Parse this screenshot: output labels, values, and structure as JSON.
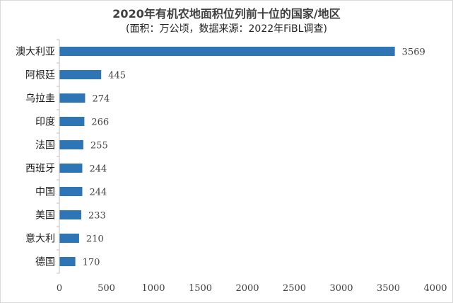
{
  "chart_data": {
    "type": "bar",
    "orientation": "horizontal",
    "title": "2020年有机农地面积位列前十位的国家/地区",
    "subtitle": "(面积：万公顷，数据来源：2022年FiBL调查)",
    "categories": [
      "澳大利亚",
      "阿根廷",
      "乌拉圭",
      "印度",
      "法国",
      "西班牙",
      "中国",
      "美国",
      "意大利",
      "德国"
    ],
    "values": [
      3569,
      445,
      274,
      266,
      255,
      244,
      244,
      233,
      210,
      170
    ],
    "value_labels": [
      "3569",
      "445",
      "274",
      "266",
      "255",
      "244",
      "244",
      "233",
      "210",
      "170"
    ],
    "xlim": [
      0,
      4000
    ],
    "xticks": [
      0,
      500,
      1000,
      1500,
      2000,
      2500,
      3000,
      3500,
      4000
    ],
    "xtick_labels": [
      "0",
      "500",
      "1000",
      "1500",
      "2000",
      "2500",
      "3000",
      "3500",
      "4000"
    ],
    "bar_color": "#2e75b6",
    "grid": false,
    "legend": "none"
  }
}
